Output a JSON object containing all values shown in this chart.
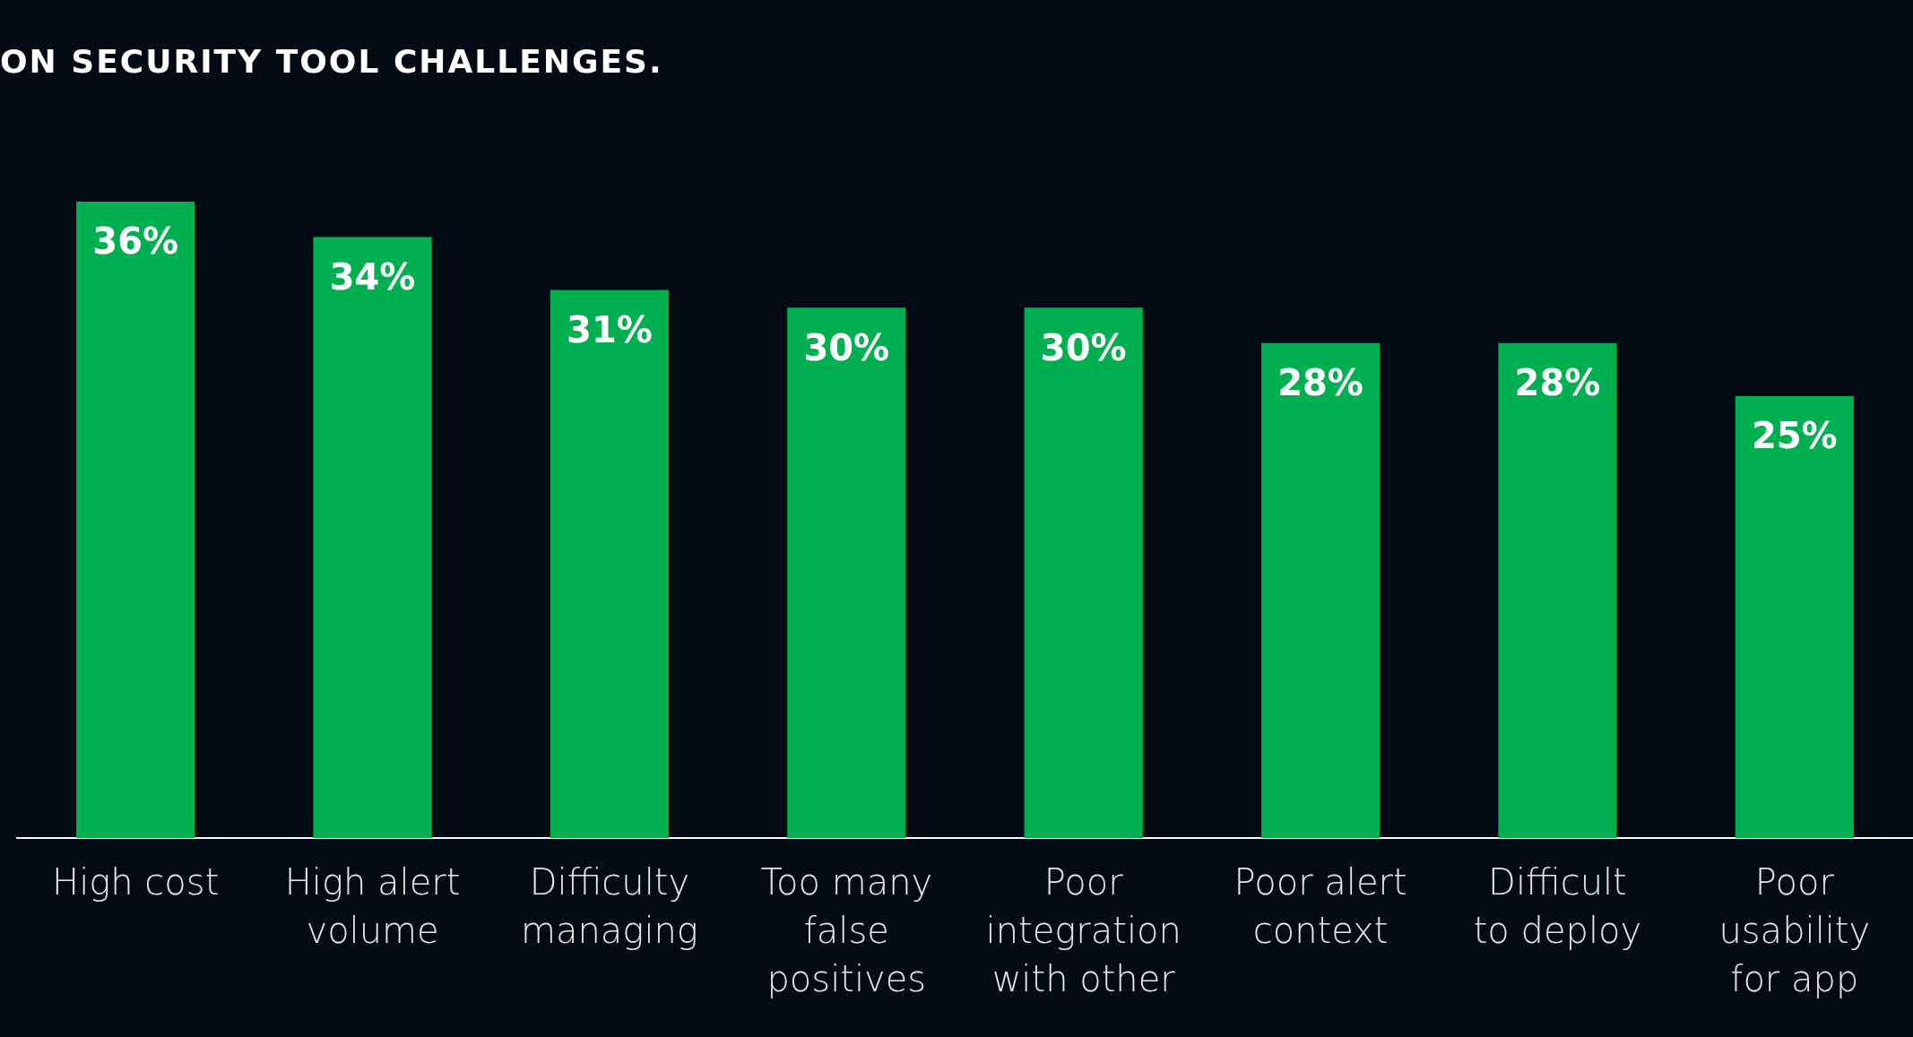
{
  "chart_data": {
    "type": "bar",
    "title": "ON SECURITY TOOL CHALLENGES.",
    "categories": [
      "High cost",
      "High alert\nvolume",
      "Difficulty\nmanaging",
      "Too many\nfalse\npositives",
      "Poor\nintegration\nwith other",
      "Poor alert\ncontext",
      "Difficult\nto deploy",
      "Poor\nusability\nfor app"
    ],
    "values": [
      36,
      34,
      31,
      30,
      30,
      28,
      28,
      25
    ],
    "value_labels": [
      "36%",
      "34%",
      "31%",
      "30%",
      "30%",
      "28%",
      "28%",
      "25%"
    ],
    "color": "#00b050"
  }
}
